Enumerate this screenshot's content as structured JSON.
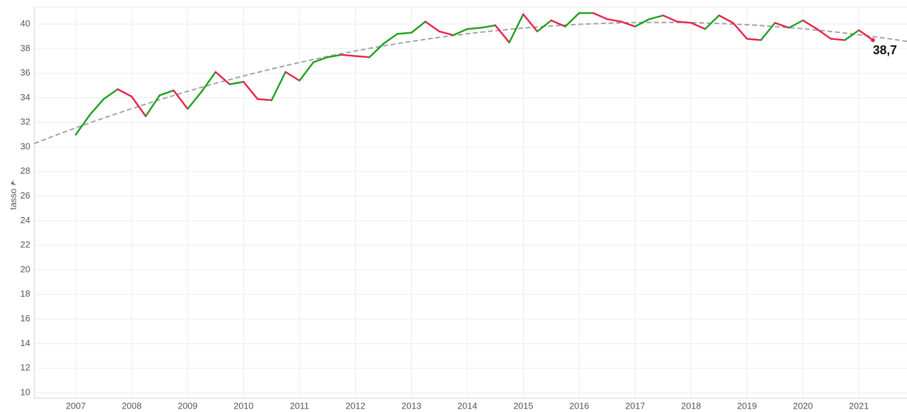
{
  "chart_data": {
    "type": "line",
    "y_label": "tasso",
    "x": [
      2007,
      2007.25,
      2007.5,
      2007.75,
      2008,
      2008.25,
      2008.5,
      2008.75,
      2009,
      2009.25,
      2009.5,
      2009.75,
      2010,
      2010.25,
      2010.5,
      2010.75,
      2011,
      2011.25,
      2011.5,
      2011.75,
      2012,
      2012.25,
      2012.5,
      2012.75,
      2013,
      2013.25,
      2013.5,
      2013.75,
      2014,
      2014.25,
      2014.5,
      2014.75,
      2015,
      2015.25,
      2015.5,
      2015.75,
      2016,
      2016.25,
      2016.5,
      2016.75,
      2017,
      2017.25,
      2017.5,
      2017.75,
      2018,
      2018.25,
      2018.5,
      2018.75,
      2019,
      2019.25,
      2019.5,
      2019.75,
      2020,
      2020.25,
      2020.5,
      2020.75,
      2021,
      2021.25
    ],
    "values": [
      31.0,
      32.6,
      33.9,
      34.7,
      34.1,
      32.5,
      34.2,
      34.6,
      33.1,
      34.5,
      36.1,
      35.1,
      35.3,
      33.9,
      33.8,
      36.1,
      35.4,
      36.9,
      37.3,
      37.5,
      37.4,
      37.3,
      38.4,
      39.2,
      39.3,
      40.2,
      39.4,
      39.1,
      39.6,
      39.7,
      39.9,
      38.5,
      40.8,
      39.4,
      40.3,
      39.8,
      40.9,
      40.9,
      40.4,
      40.2,
      39.8,
      40.4,
      40.7,
      40.2,
      40.1,
      39.6,
      40.7,
      40.1,
      38.8,
      38.7,
      40.1,
      39.7,
      40.3,
      39.6,
      38.8,
      38.7,
      39.5,
      38.7
    ],
    "value_labels": [
      null,
      null,
      null,
      null,
      null,
      null,
      null,
      null,
      null,
      null,
      null,
      null,
      null,
      null,
      null,
      null,
      null,
      null,
      null,
      null,
      null,
      null,
      null,
      null,
      null,
      null,
      null,
      null,
      null,
      null,
      null,
      null,
      null,
      null,
      null,
      null,
      null,
      null,
      null,
      null,
      null,
      null,
      null,
      null,
      null,
      null,
      null,
      null,
      null,
      null,
      null,
      null,
      null,
      null,
      null,
      null,
      null,
      "38,7"
    ],
    "rise_color": "#1ea01e",
    "fall_color": "#e8224a",
    "trend_line": "quadratic",
    "trend_color": "#a0a0a8",
    "xlim": [
      2006.26,
      2021.86
    ],
    "xticks": [
      2007,
      2008,
      2009,
      2010,
      2011,
      2012,
      2013,
      2014,
      2015,
      2016,
      2017,
      2018,
      2019,
      2020,
      2021
    ],
    "ylim": [
      9.55,
      41.4
    ],
    "yticks": [
      10,
      12,
      14,
      16,
      18,
      20,
      22,
      24,
      26,
      28,
      30,
      32,
      34,
      36,
      38,
      40
    ],
    "grid": true
  }
}
